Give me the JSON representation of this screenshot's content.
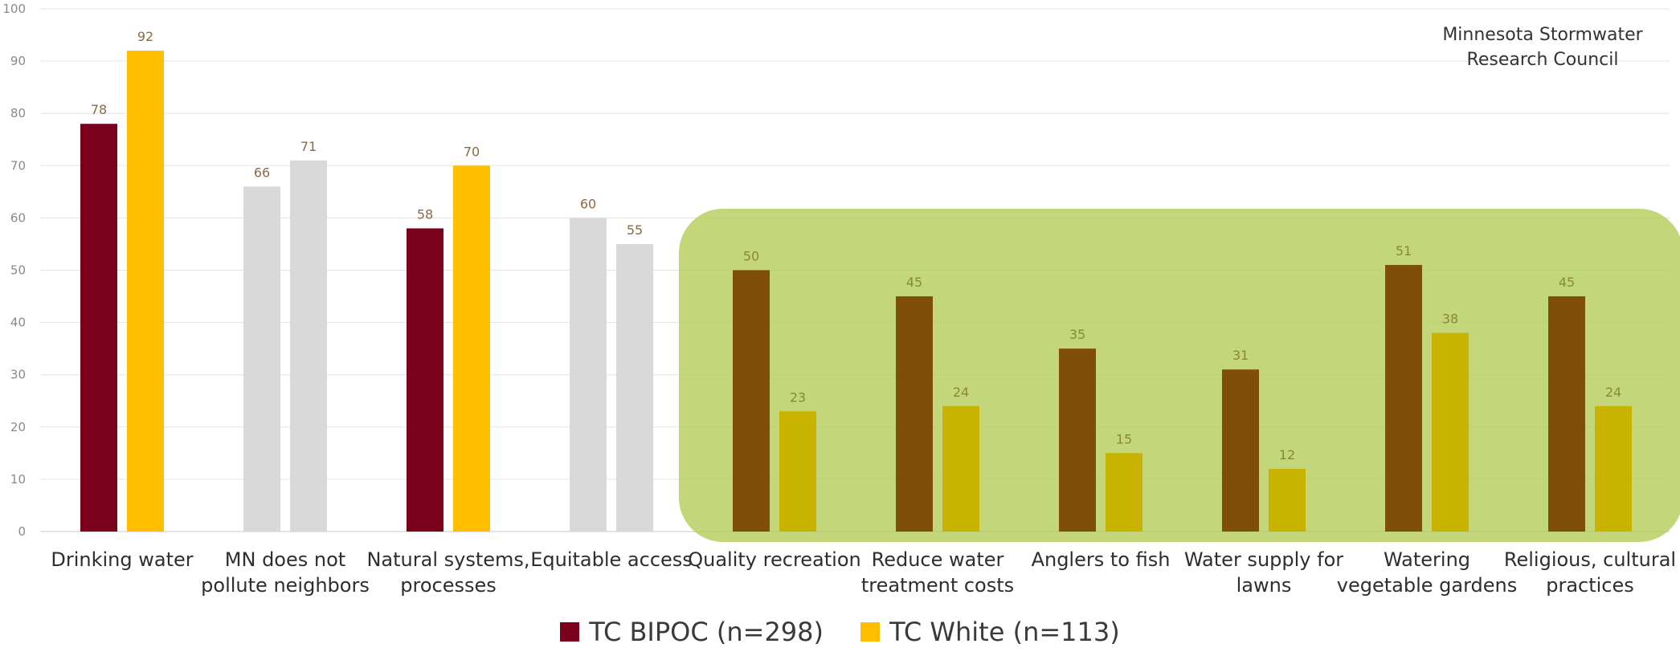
{
  "chart_data": {
    "type": "bar",
    "title": "",
    "xlabel": "",
    "ylabel": "",
    "ylim": [
      0,
      100
    ],
    "yticks": [
      0,
      10,
      20,
      30,
      40,
      50,
      60,
      70,
      80,
      90,
      100
    ],
    "grid": true,
    "legend_position": "bottom",
    "categories": [
      [
        "Drinking water"
      ],
      [
        "MN does not",
        "pollute neighbors"
      ],
      [
        "Natural systems,",
        "processes"
      ],
      [
        "Equitable access"
      ],
      [
        "Quality recreation"
      ],
      [
        "Reduce water",
        "treatment costs"
      ],
      [
        "Anglers to fish"
      ],
      [
        "Water supply for",
        "lawns"
      ],
      [
        "Watering",
        "vegetable gardens"
      ],
      [
        "Religious, cultural",
        "practices"
      ]
    ],
    "series": [
      {
        "name": "TC BIPOC (n=298)",
        "values": [
          78,
          66,
          58,
          60,
          50,
          45,
          35,
          31,
          51,
          45
        ]
      },
      {
        "name": "TC White (n=113)",
        "values": [
          92,
          71,
          70,
          55,
          23,
          24,
          15,
          12,
          38,
          24
        ]
      }
    ],
    "highlight_region": {
      "from_category": 4,
      "to_category": 9,
      "color": "#b3cb55"
    },
    "colors": {
      "bipoc": "#7b001c",
      "white": "#ffbf00",
      "grey": "#d9d9d9",
      "bipoc_highlight": "#7f4f0a",
      "white_highlight": "#c8b400",
      "label_normal": "#8c6a44",
      "label_highlight": "#8a8a2c"
    },
    "annotation": "Minnesota Stormwater Research Council"
  },
  "legend": {
    "items": [
      {
        "label": "TC BIPOC (n=298)",
        "color": "#7b001c"
      },
      {
        "label": "TC White (n=113)",
        "color": "#ffbf00"
      }
    ]
  }
}
